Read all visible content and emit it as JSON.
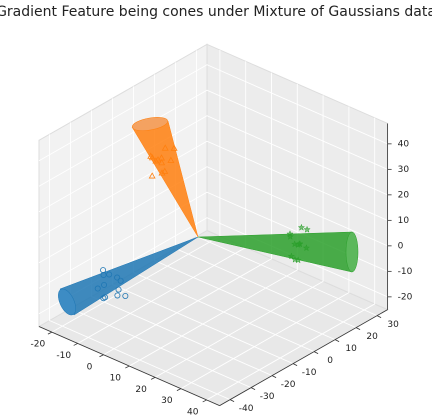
{
  "chart_data": {
    "type": "scatter3d",
    "title": "Gradient Feature being cones under Mixture of Gaussians data",
    "xlim": [
      -25,
      45
    ],
    "ylim": [
      -45,
      35
    ],
    "zlim": [
      -25,
      48
    ],
    "xticks": [
      -20,
      -10,
      0,
      10,
      20,
      30,
      40
    ],
    "yticks": [
      -40,
      -30,
      -20,
      -10,
      0,
      10,
      20,
      30
    ],
    "zticks": [
      -20,
      -10,
      0,
      10,
      20,
      30,
      40
    ],
    "grid": true,
    "series": [
      {
        "color": "#1f77b4",
        "marker": "o",
        "x": [
          -12,
          -8,
          -10,
          -14,
          -6,
          -11,
          -9,
          -13,
          -7,
          -10,
          -12,
          -8
        ],
        "y": [
          -30,
          -27,
          -32,
          -28,
          -31,
          -25,
          -34,
          -29,
          -26,
          -30,
          -33,
          -28
        ],
        "z": [
          -10,
          -8,
          -13,
          -6,
          -11,
          -9,
          -12,
          -7,
          -14,
          -5,
          -10,
          -11
        ]
      },
      {
        "color": "#ff7f0e",
        "marker": "^",
        "x": [
          -9,
          -6,
          -10,
          -7,
          -5,
          -11,
          -8,
          -4,
          -12,
          -8,
          -6,
          -9
        ],
        "y": [
          -8,
          -10,
          -5,
          -7,
          -11,
          -9,
          -6,
          -8,
          -7,
          -12,
          -4,
          -9
        ],
        "z": [
          30,
          33,
          27,
          35,
          28,
          31,
          25,
          32,
          29,
          26,
          34,
          30
        ]
      },
      {
        "color": "#2ca02c",
        "marker": "*",
        "x": [
          25,
          28,
          22,
          26,
          24,
          29,
          21,
          27,
          23,
          25,
          26,
          24
        ],
        "y": [
          17,
          14,
          19,
          20,
          15,
          16,
          18,
          13,
          21,
          17,
          12,
          19
        ],
        "z": [
          0,
          3,
          -2,
          5,
          -4,
          1,
          2,
          -3,
          4,
          -6,
          6,
          -1
        ]
      }
    ]
  }
}
